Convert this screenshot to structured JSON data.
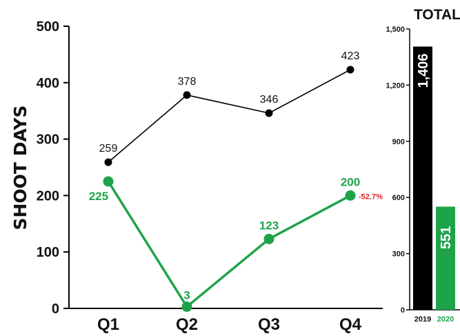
{
  "chart_data": [
    {
      "type": "line",
      "ylabel": "SHOOT DAYS",
      "xlabel": "",
      "categories": [
        "Q1",
        "Q2",
        "Q3",
        "Q4"
      ],
      "ylim": [
        0,
        500
      ],
      "yticks": [
        "0",
        "100",
        "200",
        "300",
        "400",
        "500"
      ],
      "series": [
        {
          "values": [
            259,
            378,
            346,
            423
          ],
          "labels": [
            "259",
            "378",
            "346",
            "423"
          ],
          "color": "#000000"
        },
        {
          "values": [
            225,
            3,
            123,
            200
          ],
          "labels": [
            "225",
            "3",
            "123",
            "200"
          ],
          "color": "#1fa34a"
        }
      ],
      "annotation": {
        "text": "-52.7%",
        "color": "#e02020",
        "category": "Q4"
      },
      "grid": false
    },
    {
      "type": "bar",
      "title": "TOTAL",
      "categories": [
        "2019",
        "2020"
      ],
      "values": [
        1406,
        551
      ],
      "labels": [
        "1,406",
        "551"
      ],
      "colors": [
        "#000000",
        "#1fa34a"
      ],
      "ylim": [
        0,
        1500
      ],
      "yticks": [
        "0",
        "300",
        "600",
        "900",
        "1,200",
        "1,500"
      ],
      "grid": false
    }
  ]
}
